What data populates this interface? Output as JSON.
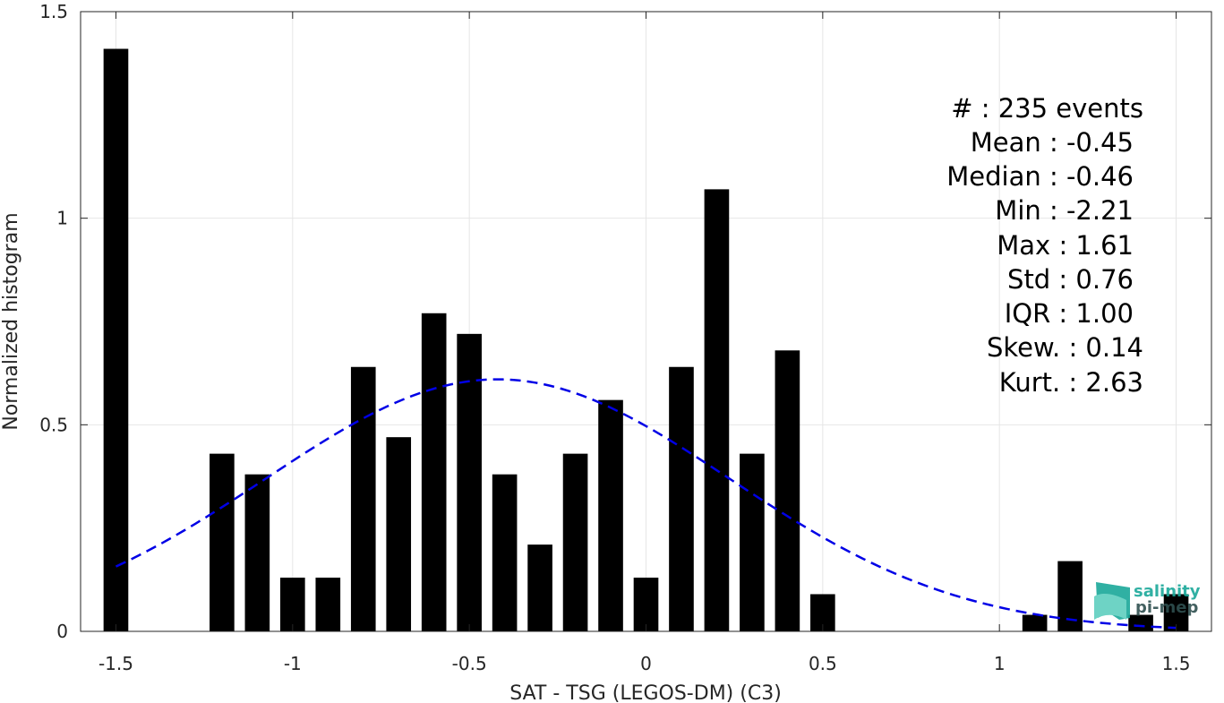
{
  "chart_data": {
    "type": "bar",
    "title": "",
    "xlabel": "SAT - TSG (LEGOS-DM) (C3)",
    "ylabel": "Normalized histogram",
    "xlim": [
      -1.6,
      1.6
    ],
    "ylim": [
      0,
      1.5
    ],
    "grid": true,
    "x_ticks": [
      -1.5,
      -1,
      -0.5,
      0,
      0.5,
      1,
      1.5
    ],
    "x_tick_labels": [
      "-1.5",
      "-1",
      "-0.5",
      "0",
      "0.5",
      "1",
      "1.5"
    ],
    "y_ticks": [
      0,
      0.5,
      1,
      1.5
    ],
    "y_tick_labels": [
      "0",
      "0.5",
      "1",
      "1.5"
    ],
    "bar_width": 0.07,
    "bar_color": "#000000",
    "bars": {
      "x": [
        -1.5,
        -1.2,
        -1.1,
        -1.0,
        -0.9,
        -0.8,
        -0.7,
        -0.6,
        -0.5,
        -0.4,
        -0.3,
        -0.2,
        -0.1,
        0.0,
        0.1,
        0.2,
        0.3,
        0.4,
        0.5,
        1.1,
        1.2,
        1.4,
        1.5
      ],
      "values": [
        1.41,
        0.43,
        0.38,
        0.13,
        0.13,
        0.64,
        0.47,
        0.77,
        0.72,
        0.38,
        0.21,
        0.43,
        0.56,
        0.13,
        0.64,
        1.07,
        0.43,
        0.68,
        0.09,
        0.04,
        0.17,
        0.04,
        0.09
      ]
    },
    "fit_curve": {
      "style": "dashed",
      "color": "#0000e6",
      "mean": -0.42,
      "std": 0.6555,
      "peak": 0.61,
      "x_range": [
        -1.5,
        1.5
      ]
    }
  },
  "stats": {
    "lines": [
      "#  : 235 events",
      "Mean : -0.45",
      "Median : -0.46",
      "Min : -2.21",
      "Max : 1.61",
      "Std : 0.76",
      "IQR : 1.00",
      "Skew. : 0.14",
      "Kurt. : 2.63"
    ]
  },
  "logo": {
    "line1": "salinity",
    "line2": "pi-mep",
    "color_primary": "#1aa89a",
    "color_secondary": "#2f4f4f"
  }
}
